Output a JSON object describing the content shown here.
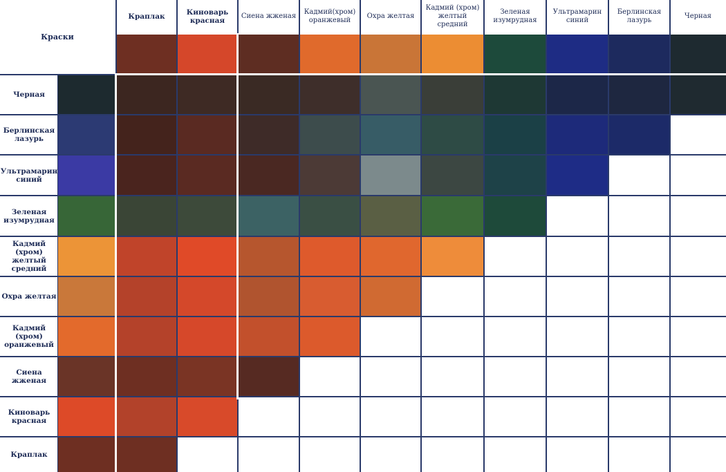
{
  "corner_label": "Краски",
  "columns": [
    {
      "name": "Краплак",
      "color": "#6e2f22"
    },
    {
      "name": "Киноварь красная",
      "color": "#d5472a"
    },
    {
      "name": "Сиена жженая",
      "color": "#5e2d22"
    },
    {
      "name": "Кадмий(хром) оранжевый",
      "color": "#e06a2c"
    },
    {
      "name": "Охра желтая",
      "color": "#c97537"
    },
    {
      "name": "Кадмий (хром) желтый средний",
      "color": "#ec8d33"
    },
    {
      "name": "Зеленая изумрудная",
      "color": "#1d4a3b"
    },
    {
      "name": "Ультрамарин синий",
      "color": "#1e2c84"
    },
    {
      "name": "Берлинская лазурь",
      "color": "#1d2a5e"
    },
    {
      "name": "Черная",
      "color": "#1e2a30"
    }
  ],
  "rows": [
    {
      "name": "Черная",
      "color": "#1d2a2f"
    },
    {
      "name": "Берлинская лазурь",
      "color": "#2c3a73"
    },
    {
      "name": "Ультрамарин синий",
      "color": "#3b3aa4"
    },
    {
      "name": "Зеленая изумрудная",
      "color": "#376637"
    },
    {
      "name": "Кадмий (хром) желтый средний",
      "color": "#ec9437"
    },
    {
      "name": "Охра желтая",
      "color": "#c9783a"
    },
    {
      "name": "Кадмий (хром) оранжевый",
      "color": "#e36a2c"
    },
    {
      "name": "Сиена жженая",
      "color": "#6a3427"
    },
    {
      "name": "Киноварь красная",
      "color": "#dd4a28"
    },
    {
      "name": "Краплак",
      "color": "#6e2f22"
    }
  ],
  "mixes": [
    [
      "#3c2620",
      "#3e2a24",
      "#3a2a24",
      "#3e2e2a",
      "#4a5552",
      "#3a3e38",
      "#1e3834",
      "#1c2748",
      "#1e2740",
      "#1f2a30"
    ],
    [
      "#44231c",
      "#5a2a22",
      "#3e2b28",
      "#3d4c4c",
      "#375c66",
      "#2e4b45",
      "#1b4046",
      "#1d2a7a",
      "#1c2a68"
    ],
    [
      "#4a241e",
      "#5a2a22",
      "#4a2822",
      "#4c3a36",
      "#7c8a8c",
      "#3c4742",
      "#1e4248",
      "#1e2c86"
    ],
    [
      "#3a4536",
      "#3d4a3a",
      "#3c6264",
      "#3a4f44",
      "#5a5f44",
      "#3a6a38",
      "#1e4a3a"
    ],
    [
      "#c0442a",
      "#e04a28",
      "#b6562e",
      "#de5a2c",
      "#e0672e",
      "#ee8c3a"
    ],
    [
      "#b4422a",
      "#d4482a",
      "#b0542f",
      "#d85c30",
      "#d06a32"
    ],
    [
      "#b4422a",
      "#d6482a",
      "#c2502c",
      "#dc5a2c"
    ],
    [
      "#6e2f22",
      "#7a3424",
      "#562a22"
    ],
    [
      "#b2422a",
      "#d84a2a"
    ],
    [
      "#6e2f22"
    ]
  ]
}
